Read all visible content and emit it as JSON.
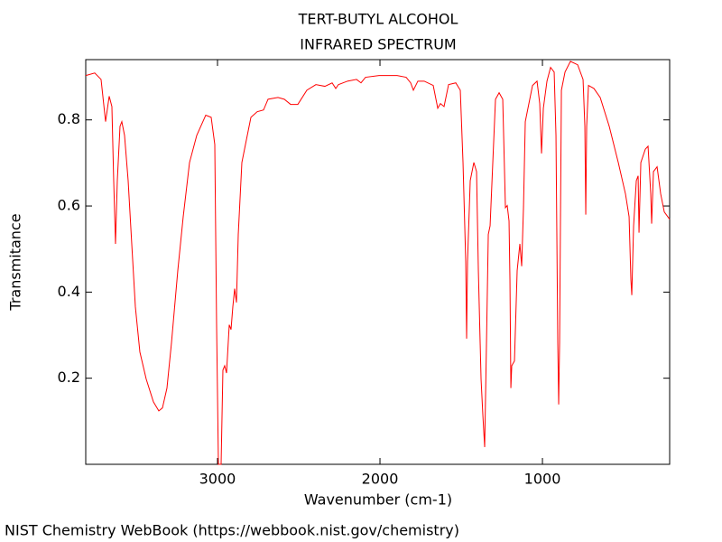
{
  "chart_data": {
    "type": "line",
    "title": "TERT-BUTYL ALCOHOL",
    "subtitle": "INFRARED SPECTRUM",
    "x_label": "Wavenumber (cm-1)",
    "y_label": "Transmitance",
    "source": "NIST Chemistry WebBook (https://webbook.nist.gov/chemistry)",
    "xlim": [
      3811,
      217
    ],
    "ylim": [
      0,
      0.94
    ],
    "xticks": [
      3000,
      2000,
      1000
    ],
    "yticks": [
      0.2,
      0.4,
      0.6,
      0.8
    ],
    "x": [
      3811,
      3755.6,
      3716.7,
      3688.9,
      3666.7,
      3650,
      3638.9,
      3627.8,
      3616.7,
      3600,
      3588.9,
      3572.2,
      3550,
      3527.8,
      3505.6,
      3477.8,
      3438.9,
      3394.4,
      3361.1,
      3338.9,
      3311.1,
      3283.3,
      3244.4,
      3211.1,
      3172.2,
      3127.8,
      3072.2,
      3038.9,
      3016.7,
      3005.6,
      2994.4,
      2977.8,
      2966.7,
      2955.6,
      2944.4,
      2927.8,
      2916.7,
      2905.6,
      2894.4,
      2883.3,
      2872.2,
      2850,
      2827.8,
      2794.4,
      2755.6,
      2716.7,
      2688.9,
      2627.8,
      2588.9,
      2550,
      2505.6,
      2450,
      2394.4,
      2338.9,
      2294.4,
      2272.2,
      2255.6,
      2200,
      2144.4,
      2116.7,
      2088.9,
      2005.6,
      1894.4,
      1838.9,
      1811.1,
      1794.4,
      1766.7,
      1727.8,
      1672.2,
      1644.4,
      1627.8,
      1605.6,
      1577.8,
      1533.3,
      1505.6,
      1488.9,
      1472.2,
      1466.7,
      1461.1,
      1444.4,
      1422.2,
      1405.6,
      1394.4,
      1377.8,
      1366.7,
      1355.6,
      1344.4,
      1333.3,
      1322.2,
      1305.6,
      1288.9,
      1266.7,
      1244.4,
      1227.8,
      1216.7,
      1205.6,
      1200,
      1194.4,
      1188.9,
      1172.2,
      1155.6,
      1138.9,
      1127.8,
      1116.7,
      1105.6,
      1061.1,
      1033.3,
      1016.7,
      1005.6,
      994.4,
      972.2,
      950,
      927.8,
      916.7,
      905.6,
      900,
      894.4,
      883.3,
      861.1,
      827.8,
      783.3,
      750,
      738.9,
      733.3,
      727.8,
      716.7,
      683.3,
      644.4,
      588.9,
      533.3,
      488.9,
      466.7,
      455.6,
      450,
      438.9,
      422.2,
      411.1,
      405.6,
      394.4,
      366.7,
      350,
      333.3,
      327.8,
      316.7,
      294.4,
      272.2,
      250,
      216.7
    ],
    "series": [
      {
        "name": "Transmitance",
        "color": "#ff0000",
        "values": [
          0.903,
          0.909,
          0.894,
          0.796,
          0.855,
          0.831,
          0.659,
          0.512,
          0.659,
          0.785,
          0.796,
          0.764,
          0.659,
          0.512,
          0.366,
          0.261,
          0.198,
          0.145,
          0.124,
          0.131,
          0.177,
          0.282,
          0.45,
          0.575,
          0.701,
          0.764,
          0.811,
          0.806,
          0.743,
          0.324,
          0,
          0,
          0.219,
          0.229,
          0.212,
          0.324,
          0.313,
          0.366,
          0.408,
          0.376,
          0.534,
          0.701,
          0.743,
          0.806,
          0.819,
          0.823,
          0.848,
          0.852,
          0.848,
          0.836,
          0.836,
          0.869,
          0.882,
          0.878,
          0.886,
          0.873,
          0.882,
          0.89,
          0.894,
          0.886,
          0.899,
          0.903,
          0.903,
          0.899,
          0.886,
          0.869,
          0.89,
          0.89,
          0.88,
          0.827,
          0.838,
          0.831,
          0.882,
          0.886,
          0.869,
          0.701,
          0.471,
          0.292,
          0.471,
          0.659,
          0.701,
          0.68,
          0.45,
          0.198,
          0.114,
          0.04,
          0.282,
          0.534,
          0.554,
          0.701,
          0.848,
          0.863,
          0.848,
          0.596,
          0.601,
          0.565,
          0.429,
          0.177,
          0.229,
          0.24,
          0.45,
          0.512,
          0.46,
          0.596,
          0.796,
          0.88,
          0.89,
          0.838,
          0.722,
          0.827,
          0.89,
          0.922,
          0.911,
          0.764,
          0.282,
          0.139,
          0.282,
          0.869,
          0.911,
          0.936,
          0.928,
          0.894,
          0.785,
          0.58,
          0.785,
          0.88,
          0.873,
          0.852,
          0.785,
          0.701,
          0.628,
          0.575,
          0.429,
          0.393,
          0.554,
          0.659,
          0.67,
          0.538,
          0.701,
          0.732,
          0.739,
          0.628,
          0.559,
          0.68,
          0.691,
          0.628,
          0.586,
          0.569
        ]
      }
    ]
  }
}
